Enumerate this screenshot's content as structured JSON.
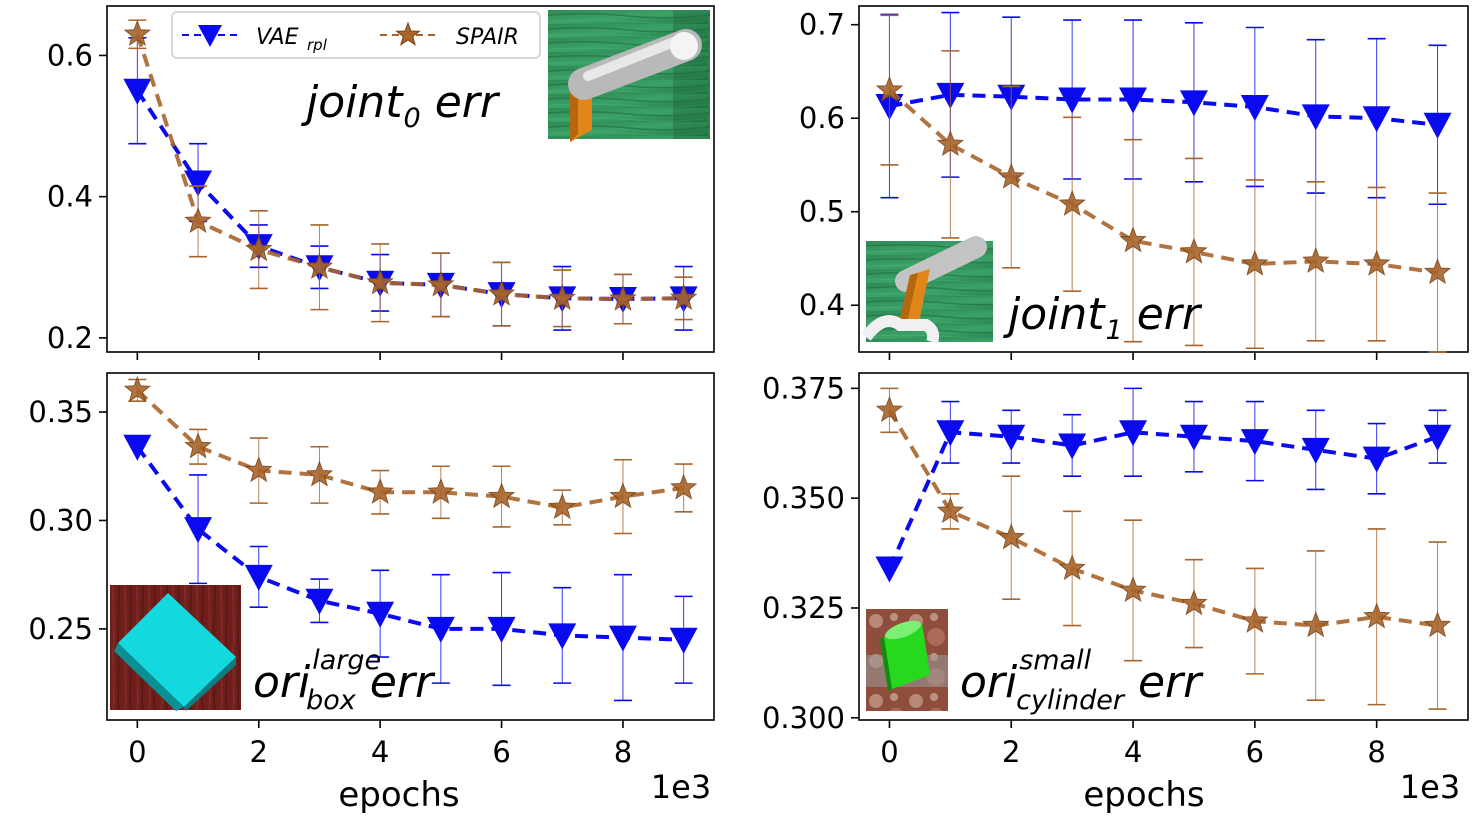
{
  "x_axis_label": "epochs",
  "x_scale_label": "1e3",
  "legend": [
    {
      "name": "VAE",
      "sub": "rpl",
      "color": "#0a0af0",
      "marker": "triangle-down"
    },
    {
      "name": "SPAIR",
      "sub": "",
      "color": "#a8642a",
      "marker": "star"
    }
  ],
  "chart_data": [
    {
      "type": "line",
      "panel": "top-left",
      "title": "joint",
      "title_sub": "0",
      "title_sup": "",
      "title_suffix": "err",
      "xlabel": "",
      "ylabel": "",
      "x": [
        0,
        1,
        2,
        3,
        4,
        5,
        6,
        7,
        8,
        9
      ],
      "xlim": [
        -0.5,
        9.5
      ],
      "ylim": [
        0.18,
        0.67
      ],
      "yticks": [
        0.2,
        0.4,
        0.6
      ],
      "ytick_labels": [
        "0.2",
        "0.4",
        "0.6"
      ],
      "xticks": [
        0,
        2,
        4,
        6,
        8
      ],
      "xtick_labels": [],
      "inset": "top-right",
      "series": [
        {
          "name": "VAE_rpl",
          "values": [
            0.55,
            0.42,
            0.33,
            0.3,
            0.278,
            0.275,
            0.262,
            0.256,
            0.255,
            0.256
          ],
          "err": [
            0.075,
            0.055,
            0.03,
            0.03,
            0.04,
            0.045,
            0.045,
            0.045,
            0.035,
            0.045
          ]
        },
        {
          "name": "SPAIR",
          "values": [
            0.63,
            0.365,
            0.325,
            0.3,
            0.278,
            0.275,
            0.262,
            0.256,
            0.255,
            0.256
          ],
          "err": [
            0.02,
            0.05,
            0.055,
            0.06,
            0.055,
            0.045,
            0.045,
            0.04,
            0.035,
            0.03
          ]
        }
      ]
    },
    {
      "type": "line",
      "panel": "top-right",
      "title": "joint",
      "title_sub": "1",
      "title_sup": "",
      "title_suffix": "err",
      "xlabel": "",
      "ylabel": "",
      "x": [
        0,
        1,
        2,
        3,
        4,
        5,
        6,
        7,
        8,
        9
      ],
      "xlim": [
        -0.5,
        9.5
      ],
      "ylim": [
        0.35,
        0.72
      ],
      "yticks": [
        0.4,
        0.5,
        0.6,
        0.7
      ],
      "ytick_labels": [
        "0.4",
        "0.5",
        "0.6",
        "0.7"
      ],
      "xticks": [
        0,
        2,
        4,
        6,
        8
      ],
      "xtick_labels": [],
      "inset": "bottom-left",
      "series": [
        {
          "name": "VAE_rpl",
          "values": [
            0.613,
            0.625,
            0.623,
            0.62,
            0.62,
            0.617,
            0.612,
            0.602,
            0.6,
            0.593
          ],
          "err": [
            0.098,
            0.088,
            0.085,
            0.085,
            0.085,
            0.085,
            0.085,
            0.082,
            0.085,
            0.085
          ]
        },
        {
          "name": "SPAIR",
          "values": [
            0.63,
            0.572,
            0.537,
            0.508,
            0.469,
            0.457,
            0.444,
            0.447,
            0.444,
            0.435
          ],
          "err": [
            0.08,
            0.1,
            0.097,
            0.093,
            0.108,
            0.1,
            0.09,
            0.085,
            0.082,
            0.085
          ]
        }
      ]
    },
    {
      "type": "line",
      "panel": "bottom-left",
      "title": "ori",
      "title_sub": "box",
      "title_sup": "large",
      "title_suffix": "err",
      "xlabel": "epochs",
      "ylabel": "",
      "x": [
        0,
        1,
        2,
        3,
        4,
        5,
        6,
        7,
        8,
        9
      ],
      "xlim": [
        -0.5,
        9.5
      ],
      "ylim": [
        0.208,
        0.368
      ],
      "yticks": [
        0.25,
        0.3,
        0.35
      ],
      "ytick_labels": [
        "0.25",
        "0.30",
        "0.35"
      ],
      "xticks": [
        0,
        2,
        4,
        6,
        8
      ],
      "xtick_labels": [
        "0",
        "2",
        "4",
        "6",
        "8"
      ],
      "inset": "bottom-left",
      "series": [
        {
          "name": "VAE_rpl",
          "values": [
            0.334,
            0.296,
            0.274,
            0.263,
            0.257,
            0.25,
            0.25,
            0.247,
            0.246,
            0.245
          ],
          "err": [
            0.0,
            0.025,
            0.014,
            0.01,
            0.02,
            0.025,
            0.026,
            0.022,
            0.029,
            0.02
          ]
        },
        {
          "name": "SPAIR",
          "values": [
            0.36,
            0.334,
            0.323,
            0.321,
            0.313,
            0.313,
            0.311,
            0.306,
            0.311,
            0.315
          ],
          "err": [
            0.005,
            0.008,
            0.015,
            0.013,
            0.01,
            0.012,
            0.014,
            0.008,
            0.017,
            0.011
          ]
        }
      ]
    },
    {
      "type": "line",
      "panel": "bottom-right",
      "title": "ori",
      "title_sub": "cylinder",
      "title_sup": "small",
      "title_suffix": "err",
      "xlabel": "epochs",
      "ylabel": "",
      "x": [
        0,
        1,
        2,
        3,
        4,
        5,
        6,
        7,
        8,
        9
      ],
      "xlim": [
        -0.5,
        9.5
      ],
      "ylim": [
        0.2995,
        0.3785
      ],
      "yticks": [
        0.3,
        0.325,
        0.35,
        0.375
      ],
      "ytick_labels": [
        "0.300",
        "0.325",
        "0.350",
        "0.375"
      ],
      "xticks": [
        0,
        2,
        4,
        6,
        8
      ],
      "xtick_labels": [
        "0",
        "2",
        "4",
        "6",
        "8"
      ],
      "inset": "bottom-left",
      "series": [
        {
          "name": "VAE_rpl",
          "values": [
            0.334,
            0.365,
            0.364,
            0.362,
            0.365,
            0.364,
            0.363,
            0.361,
            0.359,
            0.364
          ],
          "err": [
            0.0,
            0.007,
            0.006,
            0.007,
            0.01,
            0.008,
            0.009,
            0.009,
            0.008,
            0.006
          ]
        },
        {
          "name": "SPAIR",
          "values": [
            0.37,
            0.347,
            0.341,
            0.334,
            0.329,
            0.326,
            0.322,
            0.321,
            0.323,
            0.321
          ],
          "err": [
            0.005,
            0.004,
            0.014,
            0.013,
            0.016,
            0.01,
            0.012,
            0.017,
            0.02,
            0.019
          ]
        }
      ]
    }
  ]
}
